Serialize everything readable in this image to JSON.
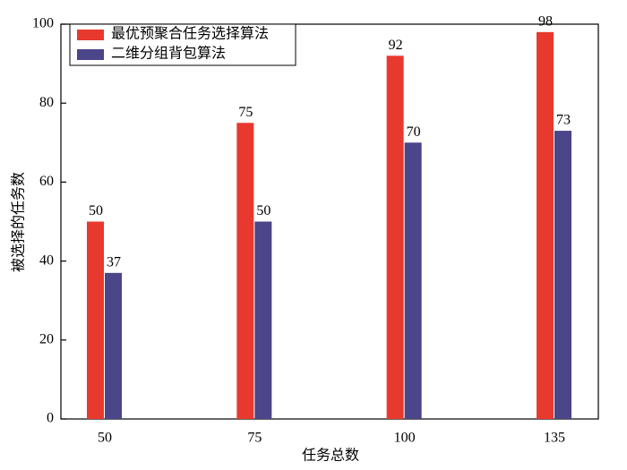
{
  "chart_data": {
    "type": "bar",
    "x_label": "任务总数",
    "y_label": "被选择的任务数",
    "categories": [
      "50",
      "75",
      "100",
      "135"
    ],
    "series": [
      {
        "name": "最优预聚合任务选择算法",
        "color": "#e8392f",
        "values": [
          50,
          75,
          92,
          98
        ]
      },
      {
        "name": "二维分组背包算法",
        "color": "#4b4589",
        "values": [
          37,
          50,
          70,
          73
        ]
      }
    ],
    "ylim": [
      0,
      100
    ],
    "yticks": [
      0,
      20,
      40,
      60,
      80,
      100
    ],
    "legend": "upper-left"
  }
}
